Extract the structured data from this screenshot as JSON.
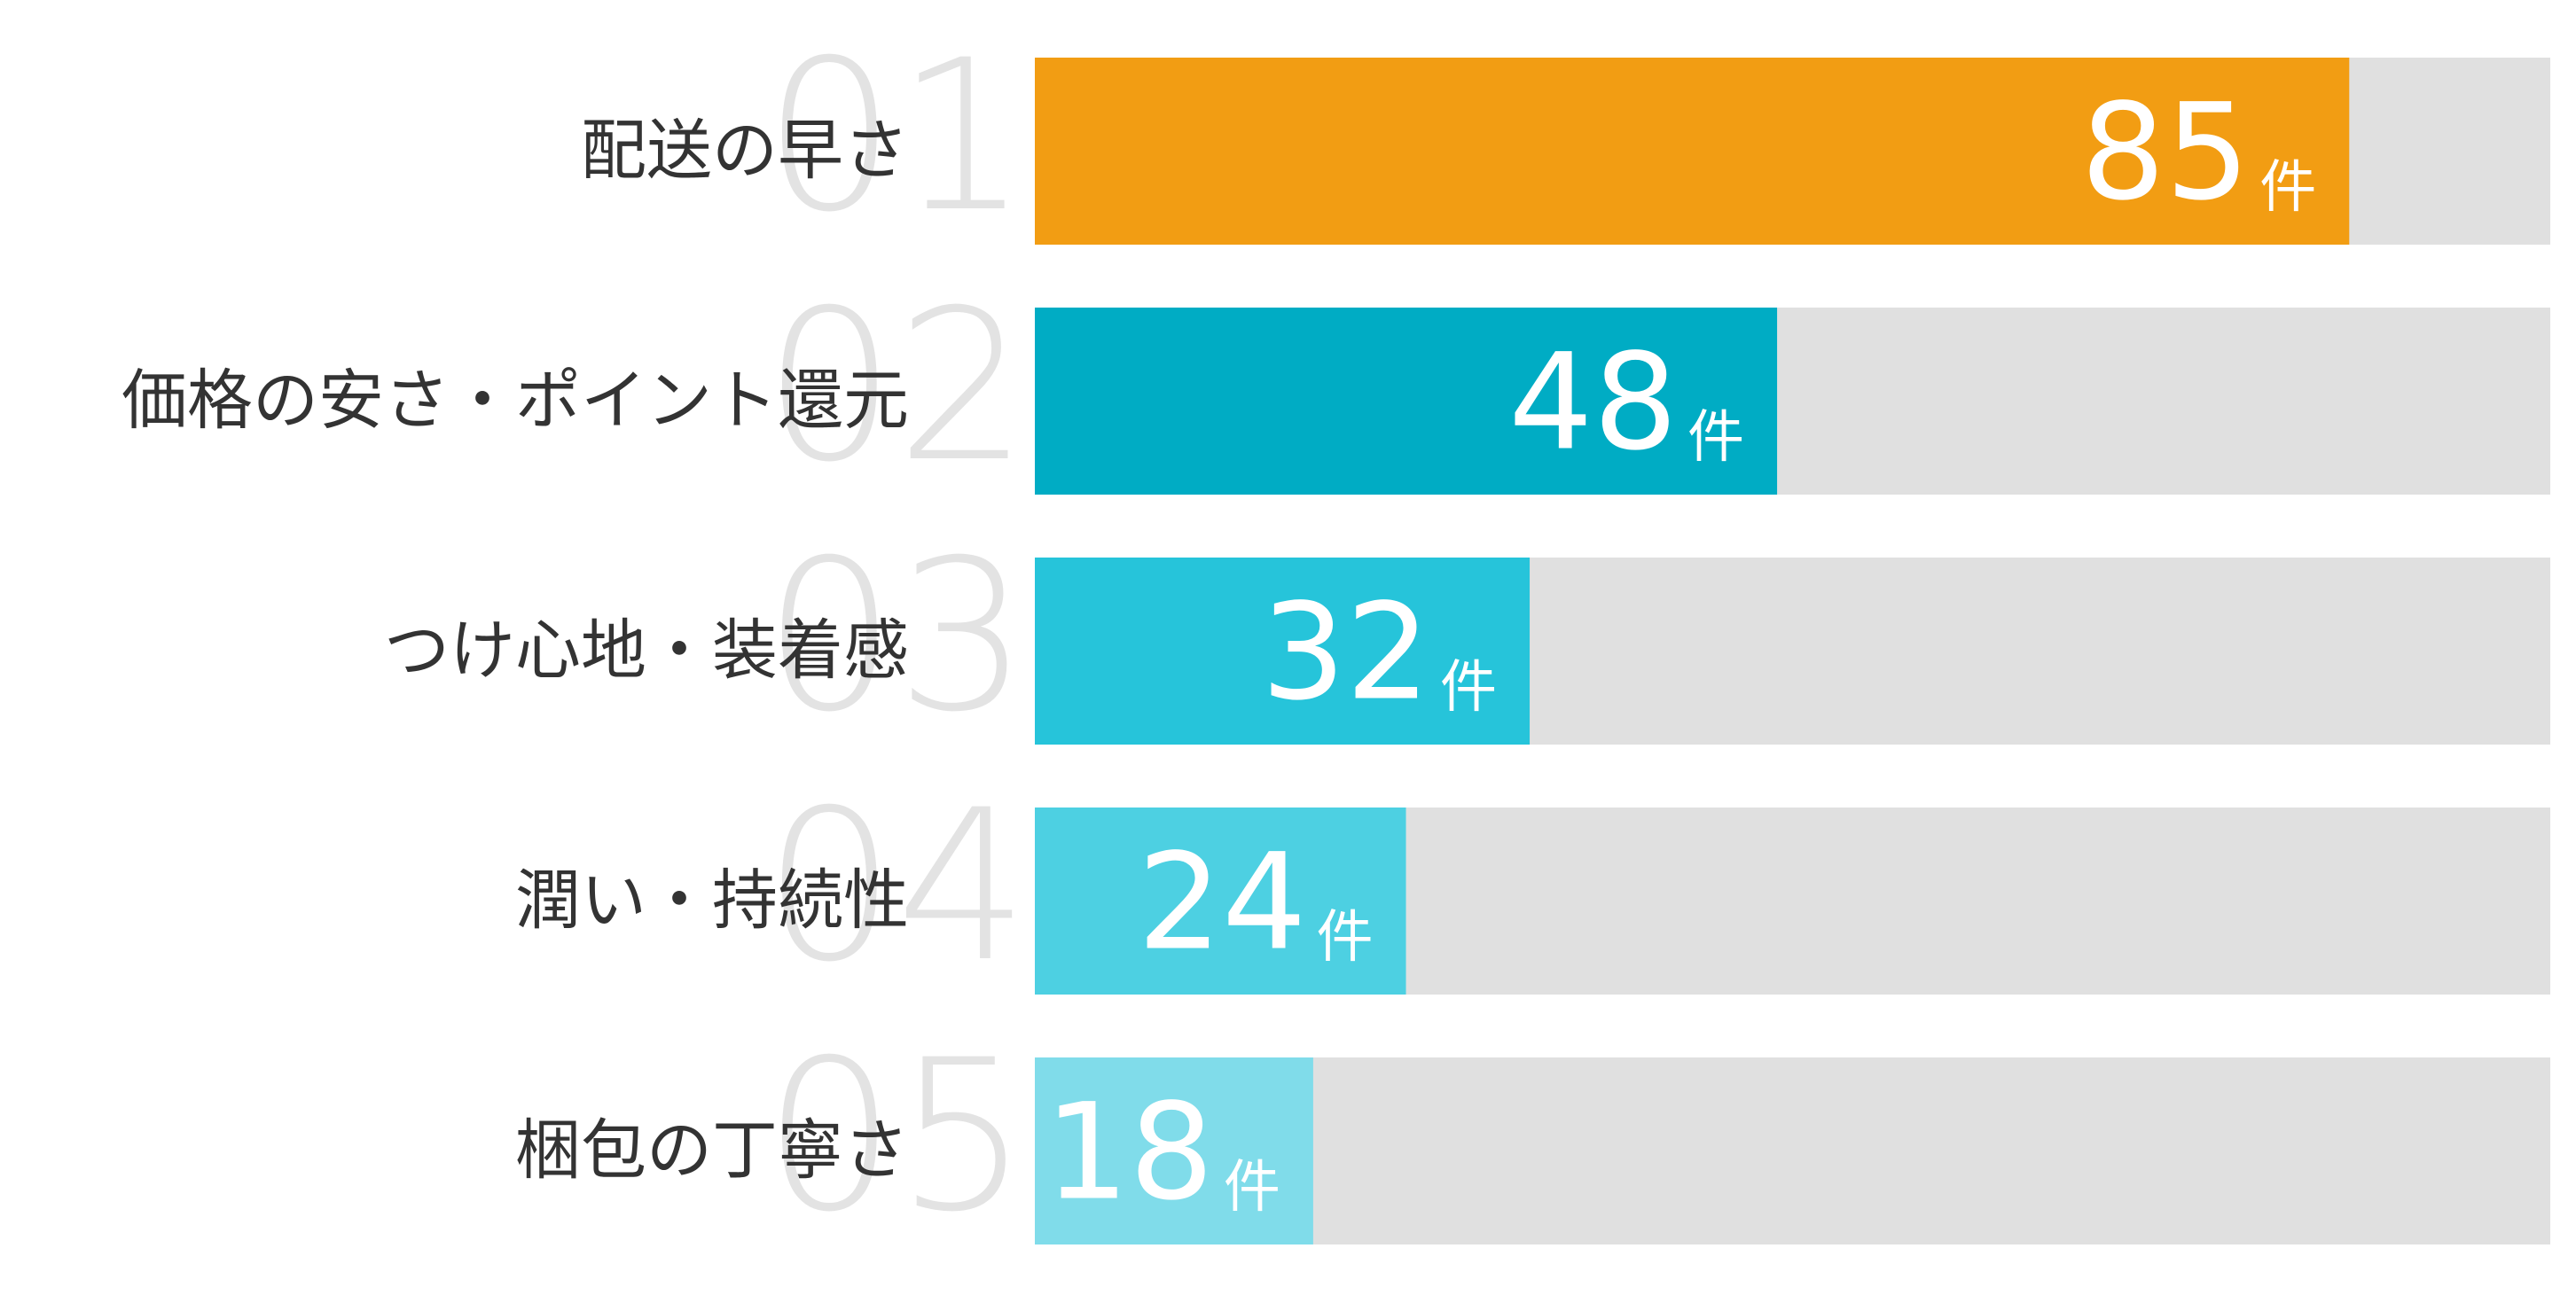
{
  "chart_data": {
    "type": "ranked-bar",
    "categories": [
      "配送の早さ",
      "価格の安さ・ポイント還元",
      "つけ心地・装着感",
      "潤い・持続性",
      "梱包の丁寧さ"
    ],
    "ranks": [
      "01",
      "02",
      "03",
      "04",
      "05"
    ],
    "values": [
      85,
      48,
      32,
      24,
      18
    ],
    "unit": "件",
    "colors": [
      "#f29d13",
      "#00acc4",
      "#26c4da",
      "#4dd0e2",
      "#80dcea"
    ],
    "track_color": "#e0e0e0",
    "xlim": [
      0,
      98
    ]
  }
}
